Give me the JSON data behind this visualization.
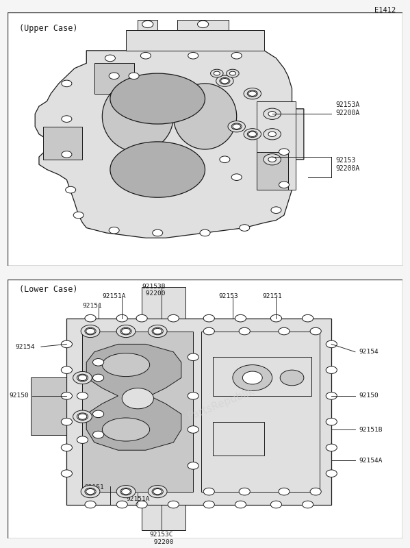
{
  "bg_color": "#f5f5f5",
  "panel_bg": "#ffffff",
  "border_color": "#444444",
  "text_color": "#111111",
  "dc": "#1a1a1a",
  "fill_light": "#e0e0e0",
  "fill_mid": "#c8c8c8",
  "fill_dark": "#b0b0b0",
  "watermark_color": "#d0d0d0",
  "page_label": "E1412",
  "upper_label": "(Upper Case)",
  "lower_label": "(Lower Case)",
  "watermark": "PartsRepublik"
}
